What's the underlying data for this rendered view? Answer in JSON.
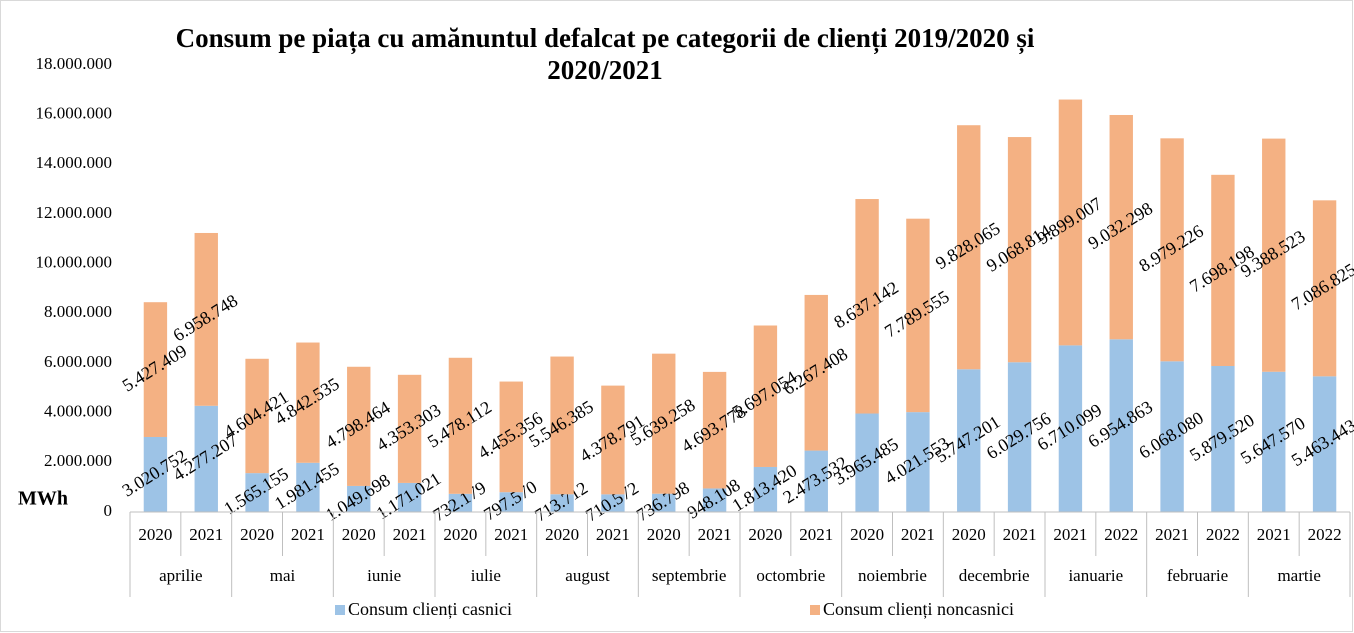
{
  "chart_data": {
    "type": "stacked_bar",
    "title": "Consum pe piața cu amănuntul defalcat pe categorii de clienți 2019/2020 și 2020/2021",
    "y_label": "MWh",
    "categories": [
      "2020",
      "2021",
      "2020",
      "2021",
      "2020",
      "2021",
      "2020",
      "2021",
      "2020",
      "2021",
      "2020",
      "2021",
      "2020",
      "2021",
      "2020",
      "2021",
      "2020",
      "2021",
      "2021",
      "2022",
      "2021",
      "2022",
      "2021",
      "2022"
    ],
    "category_groups": [
      "aprilie",
      "mai",
      "iunie",
      "iulie",
      "august",
      "septembrie",
      "octombrie",
      "noiembrie",
      "decembrie",
      "ianuarie",
      "februarie",
      "martie"
    ],
    "ylim": [
      0,
      18000000
    ],
    "yticks": [
      0,
      {
        "value": 2000000,
        "label": "2.000.000"
      },
      {
        "value": 4000000,
        "label": "4.000.000"
      },
      {
        "value": 6000000,
        "label": "6.000.000"
      },
      {
        "value": 8000000,
        "label": "8.000.000"
      },
      {
        "value": 10000000,
        "label": "10.000.000"
      },
      {
        "value": 12000000,
        "label": "12.000.000"
      },
      {
        "value": 14000000,
        "label": "14.000.000"
      },
      {
        "value": 16000000,
        "label": "16.000.000"
      },
      {
        "value": 18000000,
        "label": "18.000.000"
      }
    ],
    "grid": false,
    "legend": "bottom",
    "series": [
      {
        "name": "Consum clienți casnici",
        "color": "#9dc3e6",
        "values": [
          3020752,
          4277207,
          1565155,
          1981455,
          1049698,
          1171021,
          732179,
          797570,
          713712,
          710572,
          736798,
          948108,
          1813420,
          2473532,
          3965485,
          4021553,
          5747201,
          6029756,
          6710099,
          6954863,
          6068080,
          5879520,
          5647570,
          5463443
        ],
        "value_labels": [
          "3.020.752",
          "4.277.207",
          "1.565.155",
          "1.981.455",
          "1.049.698",
          "1.171.021",
          "732.179",
          "797.570",
          "713.712",
          "710.572",
          "736.798",
          "948.108",
          "1.813.420",
          "2.473.532",
          "3.965.485",
          "4.021.553",
          "5.747.201",
          "6.029.756",
          "6.710.099",
          "6.954.863",
          "6.068.080",
          "5.879.520",
          "5.647.570",
          "5.463.443"
        ]
      },
      {
        "name": "Consum clienți noncasnici",
        "color": "#f4b183",
        "values": [
          5427409,
          6958748,
          4604421,
          4842535,
          4798464,
          4353303,
          5478112,
          4455356,
          5546385,
          4378791,
          5639258,
          4693778,
          5697054,
          6267408,
          8637142,
          7789555,
          9828065,
          9068814,
          9899007,
          9032298,
          8979226,
          7698198,
          9388523,
          7086825
        ],
        "value_labels": [
          "5.427.409",
          "6.958.748",
          "4.604.421",
          "4.842.535",
          "4.798.464",
          "4.353.303",
          "5.478.112",
          "4.455.356",
          "5.546.385",
          "4.378.791",
          "5.639.258",
          "4.693.778",
          "5.697.054",
          "6.267.408",
          "8.637.142",
          "7.789.555",
          "9.828.065",
          "9.068.814",
          "9.899.007",
          "9.032.298",
          "8.979.226",
          "7.698.198",
          "9.388.523",
          "7.086.825"
        ]
      }
    ]
  }
}
